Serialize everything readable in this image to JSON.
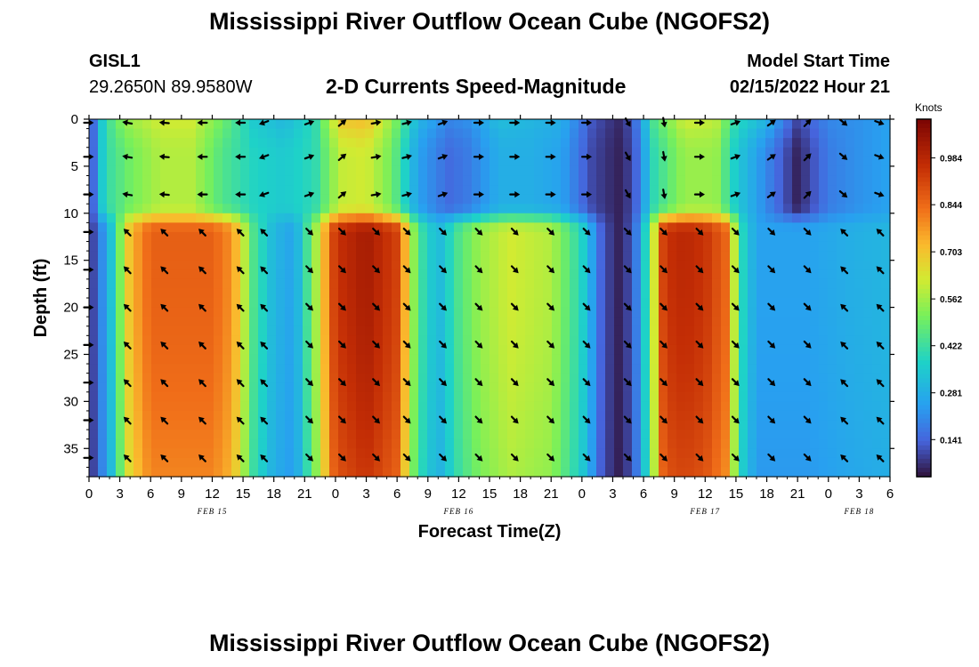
{
  "header": {
    "title": "Mississippi River Outflow Ocean Cube (NGOFS2)",
    "station_id": "GISL1",
    "station_coords": "29.2650N  89.9580W",
    "subtitle": "2-D Currents Speed-Magnitude",
    "model_start_label": "Model Start Time",
    "model_start_value": "02/15/2022 Hour 21"
  },
  "footer": {
    "title": "Mississippi River Outflow Ocean Cube (NGOFS2)"
  },
  "chart_data": {
    "type": "heatmap",
    "title": "2-D Currents Speed-Magnitude",
    "xlabel": "Forecast Time(Z)",
    "ylabel": "Depth (ft)",
    "x_ticks": [
      "0",
      "3",
      "6",
      "9",
      "12",
      "15",
      "18",
      "21",
      "0",
      "3",
      "6",
      "9",
      "12",
      "15",
      "18",
      "21",
      "0",
      "3",
      "6",
      "9",
      "12",
      "15",
      "18",
      "21",
      "0",
      "3",
      "6"
    ],
    "x_tick_hours": [
      0,
      3,
      6,
      9,
      12,
      15,
      18,
      21,
      24,
      27,
      30,
      33,
      36,
      39,
      42,
      45,
      48,
      51,
      54,
      57,
      60,
      63,
      66,
      69,
      72,
      75,
      78
    ],
    "xlim_hours": [
      0,
      78
    ],
    "date_labels": [
      {
        "label": "FEB 15",
        "hour": 12
      },
      {
        "label": "FEB 16",
        "hour": 36
      },
      {
        "label": "FEB 17",
        "hour": 60
      },
      {
        "label": "FEB 18",
        "hour": 75
      }
    ],
    "y_ticks": [
      0,
      5,
      10,
      15,
      20,
      25,
      30,
      35
    ],
    "ylim": [
      0,
      38
    ],
    "colorbar": {
      "label": "Knots",
      "ticks": [
        "0.984",
        "0.844",
        "0.703",
        "0.562",
        "0.422",
        "0.281",
        "0.141"
      ],
      "tick_values": [
        0.984,
        0.844,
        0.703,
        0.562,
        0.422,
        0.281,
        0.141
      ],
      "range": [
        0.03,
        1.1
      ]
    },
    "layers": {
      "upper_depths": [
        0,
        4,
        8
      ],
      "lower_depths": [
        12,
        16,
        20,
        24,
        28,
        32,
        36
      ],
      "surface_ramp_ft": [
        9,
        12
      ]
    },
    "surface_speed": [
      [
        0,
        0.06
      ],
      [
        1.5,
        0.4
      ],
      [
        3.5,
        0.55
      ],
      [
        7,
        0.62
      ],
      [
        10,
        0.62
      ],
      [
        13,
        0.5
      ],
      [
        16,
        0.35
      ],
      [
        19,
        0.3
      ],
      [
        22,
        0.4
      ],
      [
        24.5,
        0.7
      ],
      [
        27,
        0.72
      ],
      [
        29.5,
        0.55
      ],
      [
        32,
        0.3
      ],
      [
        35,
        0.2
      ],
      [
        37,
        0.22
      ],
      [
        40,
        0.32
      ],
      [
        43,
        0.3
      ],
      [
        46,
        0.28
      ],
      [
        49,
        0.12
      ],
      [
        51.5,
        0.06
      ],
      [
        53,
        0.12
      ],
      [
        55,
        0.45
      ],
      [
        58,
        0.62
      ],
      [
        61,
        0.6
      ],
      [
        63,
        0.4
      ],
      [
        66,
        0.3
      ],
      [
        69,
        0.1
      ],
      [
        72,
        0.2
      ],
      [
        75,
        0.22
      ],
      [
        78,
        0.25
      ]
    ],
    "mid_speed": [
      [
        0,
        0.05
      ],
      [
        1.5,
        0.4
      ],
      [
        4,
        0.5
      ],
      [
        7,
        0.58
      ],
      [
        10,
        0.58
      ],
      [
        13,
        0.45
      ],
      [
        16,
        0.38
      ],
      [
        19,
        0.35
      ],
      [
        22,
        0.4
      ],
      [
        24.5,
        0.6
      ],
      [
        27,
        0.62
      ],
      [
        29.5,
        0.5
      ],
      [
        32,
        0.25
      ],
      [
        35,
        0.15
      ],
      [
        37,
        0.18
      ],
      [
        40,
        0.28
      ],
      [
        43,
        0.28
      ],
      [
        46,
        0.25
      ],
      [
        49,
        0.1
      ],
      [
        51.5,
        0.05
      ],
      [
        53,
        0.1
      ],
      [
        55,
        0.4
      ],
      [
        58,
        0.55
      ],
      [
        61,
        0.55
      ],
      [
        63,
        0.35
      ],
      [
        66,
        0.2
      ],
      [
        69,
        0.05
      ],
      [
        72,
        0.18
      ],
      [
        75,
        0.22
      ],
      [
        78,
        0.25
      ]
    ],
    "bottom_speed": [
      [
        0,
        0.05
      ],
      [
        2,
        0.3
      ],
      [
        4,
        0.72
      ],
      [
        6,
        0.86
      ],
      [
        12,
        0.86
      ],
      [
        14,
        0.78
      ],
      [
        16,
        0.45
      ],
      [
        18,
        0.3
      ],
      [
        20,
        0.25
      ],
      [
        22,
        0.55
      ],
      [
        24,
        0.95
      ],
      [
        27,
        1.02
      ],
      [
        30,
        0.92
      ],
      [
        32,
        0.45
      ],
      [
        34,
        0.3
      ],
      [
        36,
        0.45
      ],
      [
        38,
        0.55
      ],
      [
        41,
        0.62
      ],
      [
        45,
        0.58
      ],
      [
        48,
        0.38
      ],
      [
        50,
        0.12
      ],
      [
        51.5,
        0.05
      ],
      [
        53,
        0.12
      ],
      [
        54.5,
        0.45
      ],
      [
        56,
        0.95
      ],
      [
        58,
        0.98
      ],
      [
        60,
        0.95
      ],
      [
        62,
        0.85
      ],
      [
        63.5,
        0.4
      ],
      [
        65,
        0.25
      ],
      [
        70,
        0.25
      ],
      [
        74,
        0.28
      ],
      [
        78,
        0.3
      ]
    ],
    "arrow_times": [
      0,
      3.7,
      7.3,
      11,
      14.7,
      17,
      21.5,
      24.7,
      28,
      31,
      34.5,
      38,
      41.5,
      45,
      48.5,
      52.5,
      56,
      59.5,
      63,
      66.5,
      70,
      73.5,
      77
    ],
    "arrow_dirs_upper": [
      0,
      170,
      175,
      180,
      180,
      200,
      20,
      40,
      10,
      15,
      20,
      0,
      0,
      0,
      0,
      300,
      280,
      0,
      20,
      35,
      45,
      320,
      340
    ],
    "arrow_dirs_lower": [
      0,
      135,
      135,
      135,
      135,
      135,
      315,
      315,
      315,
      315,
      315,
      315,
      315,
      315,
      315,
      315,
      315,
      315,
      315,
      315,
      315,
      135,
      135
    ]
  }
}
